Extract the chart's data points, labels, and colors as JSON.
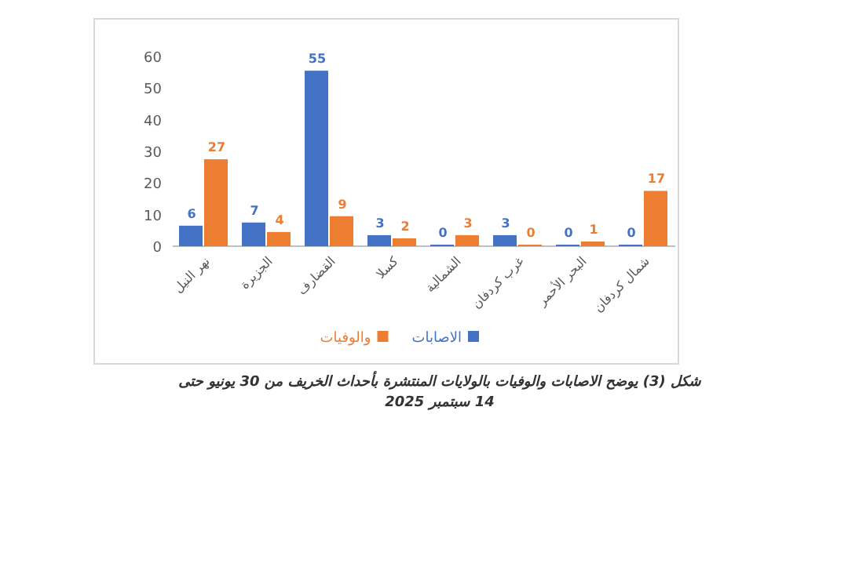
{
  "chart_data": {
    "type": "bar",
    "categories": [
      "نهر النيل",
      "الجزيرة",
      "القضارف",
      "كسلا",
      "الشمالية",
      "غرب كردفان",
      "البحر الأحمر",
      "شمال كردفان"
    ],
    "series": [
      {
        "name": "الاصابات",
        "color": "#4472c4",
        "values": [
          6,
          7,
          55,
          3,
          0,
          3,
          0,
          0
        ]
      },
      {
        "name": "والوفيات",
        "color": "#ed7d31",
        "values": [
          27,
          4,
          9,
          2,
          3,
          0,
          1,
          17
        ]
      }
    ],
    "ylim": [
      0,
      60
    ],
    "yticks": [
      0,
      10,
      20,
      30,
      40,
      50,
      60
    ],
    "data_labels": true,
    "grid": false,
    "legend": "bottom",
    "annotations": [
      "شكل (3) يوضح الاصابات والوفيات بالولايات المنتشرة بأحداث الخريف من 30 يونيو حتى 14 سبتمبر 2025"
    ]
  }
}
